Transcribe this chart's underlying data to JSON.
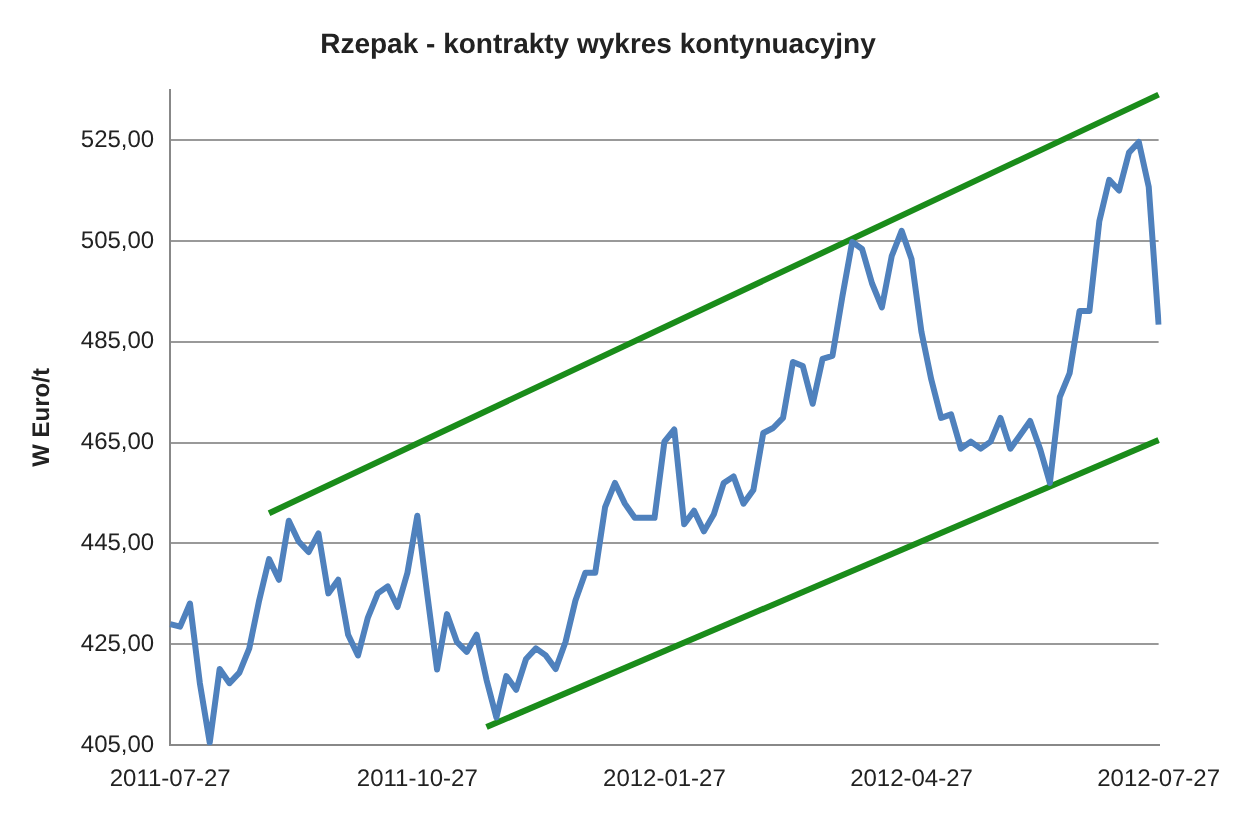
{
  "chart_data": {
    "type": "line",
    "title": "Rzepak - kontrakty wykres kontynuacyjny",
    "ylabel": "W Euro/t",
    "categories": [
      "2011-07-27",
      null,
      null,
      null,
      null,
      null,
      null,
      null,
      null,
      null,
      null,
      null,
      null,
      null,
      null,
      null,
      null,
      null,
      null,
      null,
      null,
      null,
      null,
      null,
      null,
      "2011-10-27",
      null,
      null,
      null,
      null,
      null,
      null,
      null,
      null,
      null,
      null,
      null,
      null,
      null,
      null,
      null,
      null,
      null,
      null,
      null,
      null,
      null,
      null,
      null,
      null,
      "2012-01-27",
      null,
      null,
      null,
      null,
      null,
      null,
      null,
      null,
      null,
      null,
      null,
      null,
      null,
      null,
      null,
      null,
      null,
      null,
      null,
      null,
      null,
      null,
      null,
      null,
      "2012-04-27",
      null,
      null,
      null,
      null,
      null,
      null,
      null,
      null,
      null,
      null,
      null,
      null,
      null,
      null,
      null,
      null,
      null,
      null,
      null,
      null,
      null,
      null,
      null,
      null,
      "2012-07-27"
    ],
    "series": [
      {
        "color": "#4f81bd",
        "values": [
          429.0,
          428.5,
          433.1,
          417.3,
          405.5,
          420.1,
          417.3,
          419.4,
          424.2,
          433.7,
          441.9,
          437.8,
          449.5,
          445.4,
          443.3,
          447.0,
          435.1,
          437.8,
          426.9,
          422.8,
          430.3,
          435.1,
          436.5,
          432.4,
          439.2,
          450.5,
          435.0,
          420.0,
          431.0,
          425.5,
          423.5,
          426.9,
          418.0,
          410.5,
          418.7,
          416.0,
          422.1,
          424.2,
          422.8,
          420.1,
          425.5,
          433.7,
          439.2,
          439.2,
          452.2,
          457.0,
          452.9,
          450.1,
          450.1,
          450.1,
          465.2,
          467.6,
          448.8,
          451.5,
          447.4,
          450.8,
          457.0,
          458.3,
          452.9,
          455.6,
          466.9,
          467.9,
          469.9,
          481.0,
          480.2,
          472.7,
          481.6,
          482.2,
          493.9,
          504.8,
          503.4,
          496.6,
          491.8,
          502.0,
          507.0,
          501.4,
          487.0,
          477.5,
          469.9,
          470.6,
          463.8,
          465.2,
          463.8,
          465.2,
          469.9,
          463.8,
          466.5,
          469.3,
          463.8,
          457.0,
          474.0,
          478.8,
          491.1,
          491.1,
          508.9,
          517.1,
          515.0,
          522.5,
          524.6,
          515.7,
          488.4
        ]
      },
      {
        "type": "line",
        "color": "#1a8c1a",
        "values": [
          null,
          null,
          null,
          null,
          null,
          null,
          null,
          null,
          null,
          null,
          451,
          null,
          null,
          null,
          null,
          null,
          null,
          null,
          null,
          null,
          null,
          null,
          null,
          null,
          null,
          null,
          null,
          null,
          null,
          null,
          null,
          null,
          null,
          null,
          null,
          null,
          null,
          null,
          null,
          null,
          null,
          null,
          null,
          null,
          null,
          null,
          null,
          null,
          null,
          null,
          null,
          null,
          null,
          null,
          null,
          null,
          null,
          null,
          null,
          null,
          null,
          null,
          null,
          null,
          null,
          null,
          null,
          null,
          null,
          null,
          null,
          null,
          null,
          null,
          null,
          null,
          null,
          null,
          null,
          null,
          null,
          null,
          null,
          null,
          null,
          null,
          null,
          null,
          null,
          null,
          null,
          null,
          null,
          null,
          null,
          null,
          null,
          null,
          null,
          null,
          534
        ]
      },
      {
        "type": "line",
        "color": "#1a8c1a",
        "values": [
          null,
          null,
          null,
          null,
          null,
          null,
          null,
          null,
          null,
          null,
          null,
          null,
          null,
          null,
          null,
          null,
          null,
          null,
          null,
          null,
          null,
          null,
          null,
          null,
          null,
          null,
          null,
          null,
          null,
          null,
          null,
          null,
          408.6,
          null,
          null,
          null,
          null,
          null,
          null,
          null,
          null,
          null,
          null,
          null,
          null,
          null,
          null,
          null,
          null,
          null,
          null,
          null,
          null,
          null,
          null,
          null,
          null,
          null,
          null,
          null,
          null,
          null,
          null,
          null,
          null,
          null,
          null,
          null,
          null,
          null,
          null,
          null,
          null,
          null,
          null,
          null,
          null,
          null,
          null,
          null,
          null,
          null,
          null,
          null,
          null,
          null,
          null,
          null,
          null,
          null,
          null,
          null,
          null,
          null,
          null,
          null,
          null,
          null,
          null,
          null,
          465.5
        ]
      }
    ],
    "ylim": [
      405,
      535
    ],
    "yticks": [
      {
        "value": 405,
        "label": "405,00"
      },
      {
        "value": 425,
        "label": "425,00"
      },
      {
        "value": 445,
        "label": "445,00"
      },
      {
        "value": 465,
        "label": "465,00"
      },
      {
        "value": 485,
        "label": "485,00"
      },
      {
        "value": 505,
        "label": "505,00"
      },
      {
        "value": 525,
        "label": "525,00"
      }
    ],
    "grid": "y",
    "legend": false
  }
}
